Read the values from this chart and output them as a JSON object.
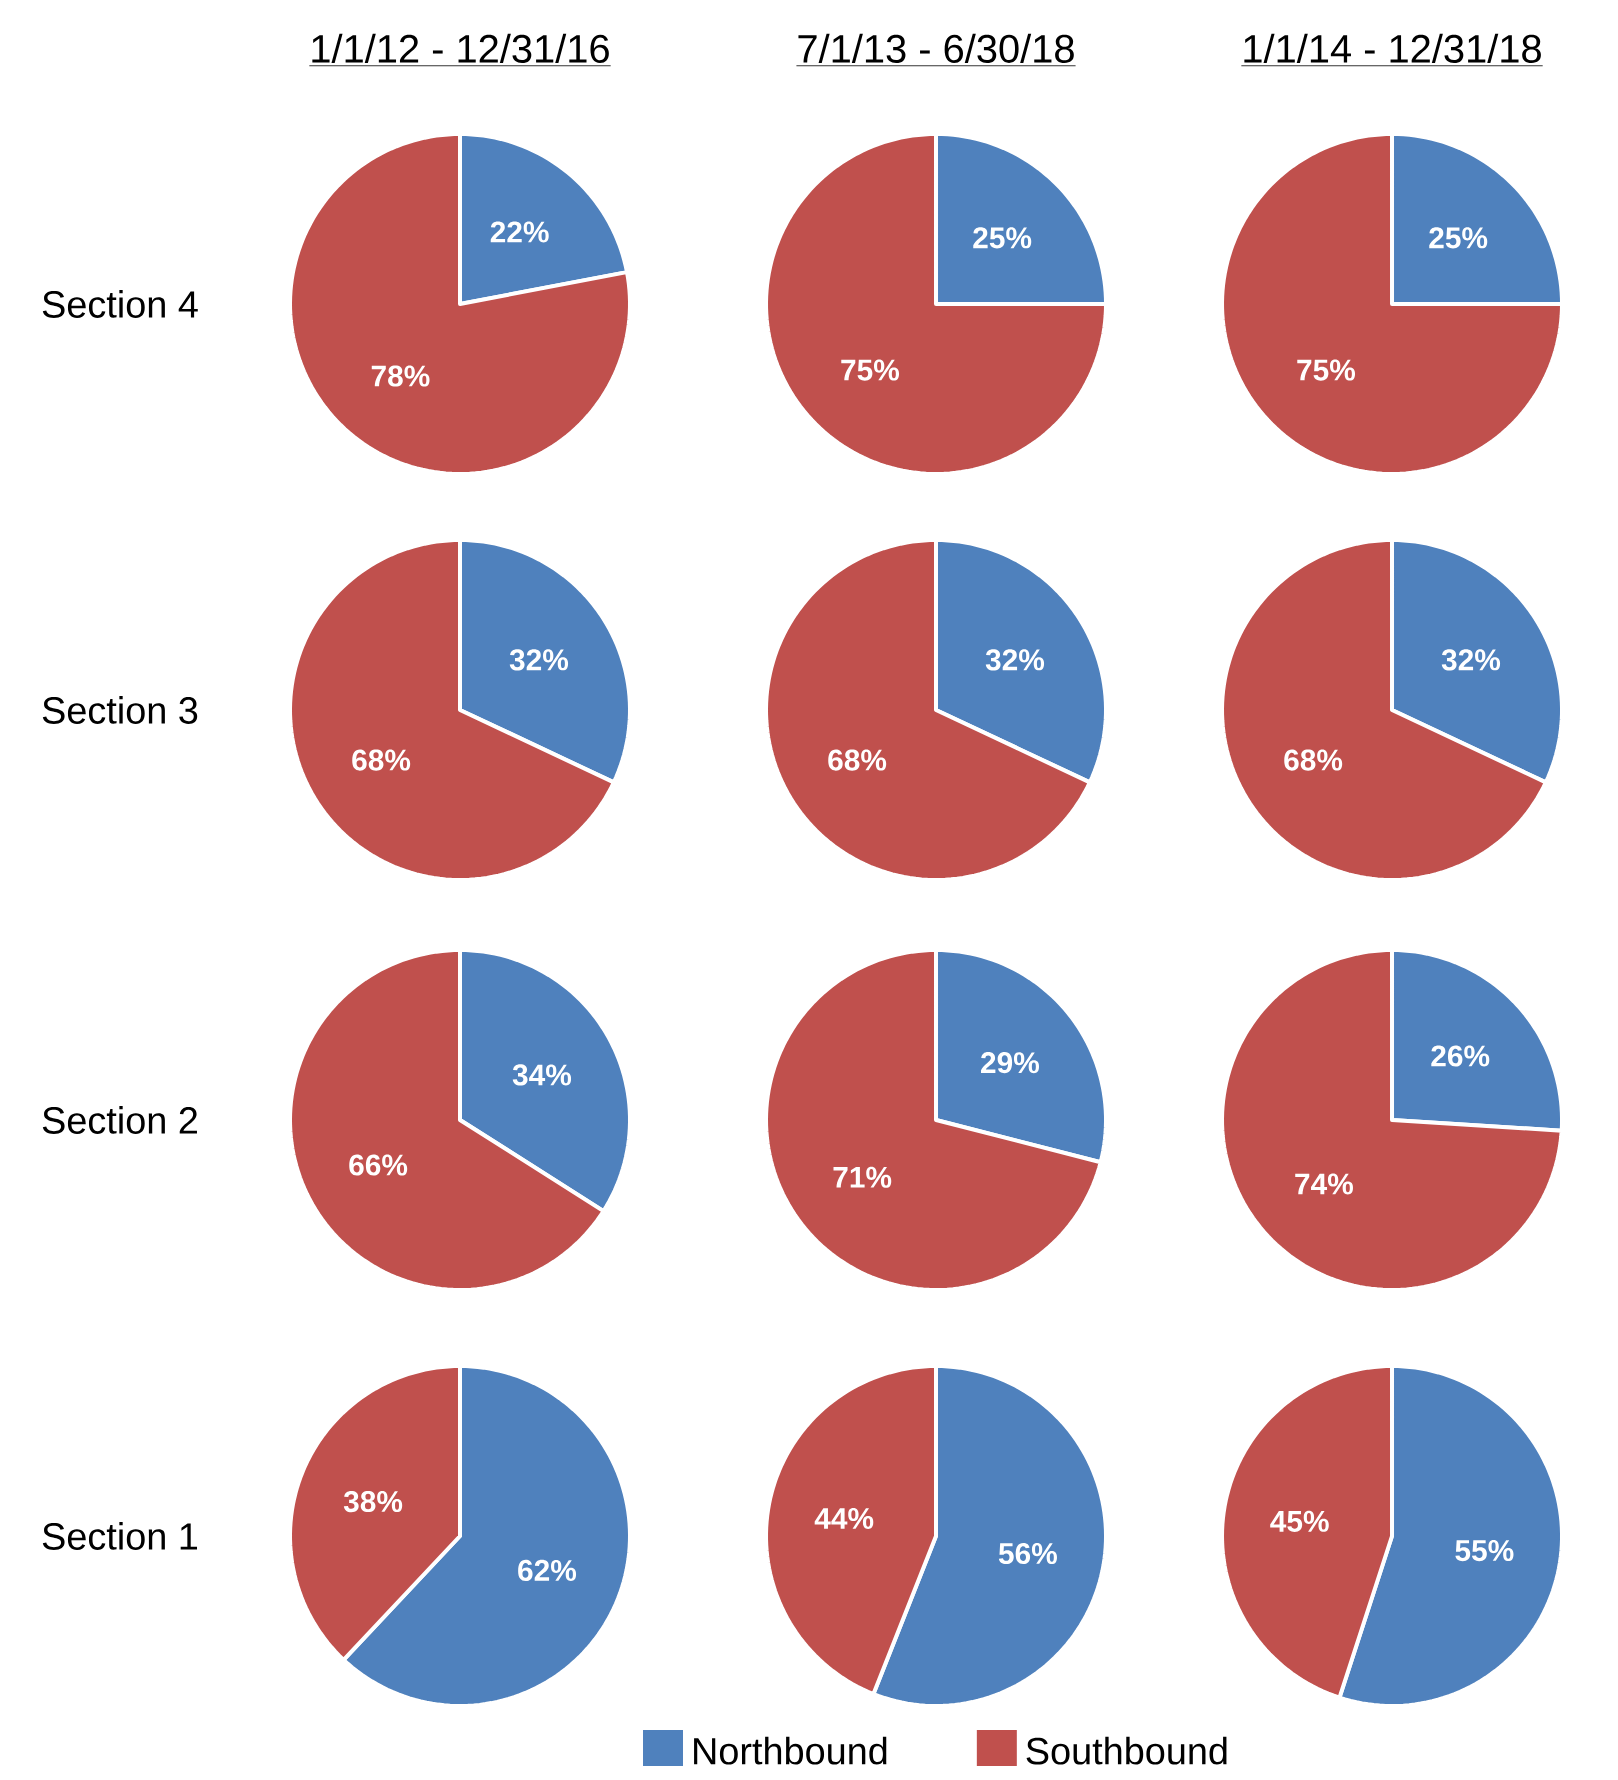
{
  "chart_data": [
    {
      "type": "pie",
      "title": "1/1/12 - 12/31/16",
      "ylabel": "Section 4",
      "categories": [
        null,
        null
      ],
      "values": [
        22,
        78
      ],
      "value_labels": [
        "22%",
        "78%"
      ],
      "colors": [
        "#4f81bd",
        "#c0504d"
      ]
    },
    {
      "type": "pie",
      "title": "7/1/13 - 6/30/18",
      "categories": [
        null,
        null
      ],
      "values": [
        25,
        75
      ],
      "value_labels": [
        "25%",
        "75%"
      ],
      "colors": [
        "#4f81bd",
        "#c0504d"
      ]
    },
    {
      "type": "pie",
      "title": "1/1/14 - 12/31/18",
      "categories": [
        null,
        null
      ],
      "values": [
        25,
        75
      ],
      "value_labels": [
        "25%",
        "75%"
      ],
      "colors": [
        "#4f81bd",
        "#c0504d"
      ]
    },
    {
      "type": "pie",
      "ylabel": "Section 3",
      "categories": [
        null,
        null
      ],
      "values": [
        32,
        68
      ],
      "value_labels": [
        "32%",
        "68%"
      ],
      "colors": [
        "#4f81bd",
        "#c0504d"
      ]
    },
    {
      "type": "pie",
      "categories": [
        null,
        null
      ],
      "values": [
        32,
        68
      ],
      "value_labels": [
        "32%",
        "68%"
      ],
      "colors": [
        "#4f81bd",
        "#c0504d"
      ]
    },
    {
      "type": "pie",
      "categories": [
        null,
        null
      ],
      "values": [
        32,
        68
      ],
      "value_labels": [
        "32%",
        "68%"
      ],
      "colors": [
        "#4f81bd",
        "#c0504d"
      ]
    },
    {
      "type": "pie",
      "ylabel": "Section 2",
      "categories": [
        null,
        null
      ],
      "values": [
        34,
        66
      ],
      "value_labels": [
        "34%",
        "66%"
      ],
      "colors": [
        "#4f81bd",
        "#c0504d"
      ]
    },
    {
      "type": "pie",
      "categories": [
        null,
        null
      ],
      "values": [
        29,
        71
      ],
      "value_labels": [
        "29%",
        "71%"
      ],
      "colors": [
        "#4f81bd",
        "#c0504d"
      ]
    },
    {
      "type": "pie",
      "categories": [
        null,
        null
      ],
      "values": [
        26,
        74
      ],
      "value_labels": [
        "26%",
        "74%"
      ],
      "colors": [
        "#4f81bd",
        "#c0504d"
      ]
    },
    {
      "type": "pie",
      "ylabel": "Section 1",
      "categories": [
        null,
        null
      ],
      "values": [
        62,
        38
      ],
      "value_labels": [
        "62%",
        "38%"
      ],
      "colors": [
        "#4f81bd",
        "#c0504d"
      ]
    },
    {
      "type": "pie",
      "categories": [
        "Northbound",
        "Southbound"
      ],
      "values": [
        56,
        44
      ],
      "value_labels": [
        "56%",
        "44%"
      ],
      "colors": [
        "#4f81bd",
        "#c0504d"
      ],
      "legend": "bottom"
    },
    {
      "type": "pie",
      "categories": [
        null,
        null
      ],
      "values": [
        55,
        45
      ],
      "value_labels": [
        "55%",
        "45%"
      ],
      "colors": [
        "#4f81bd",
        "#c0504d"
      ]
    }
  ]
}
